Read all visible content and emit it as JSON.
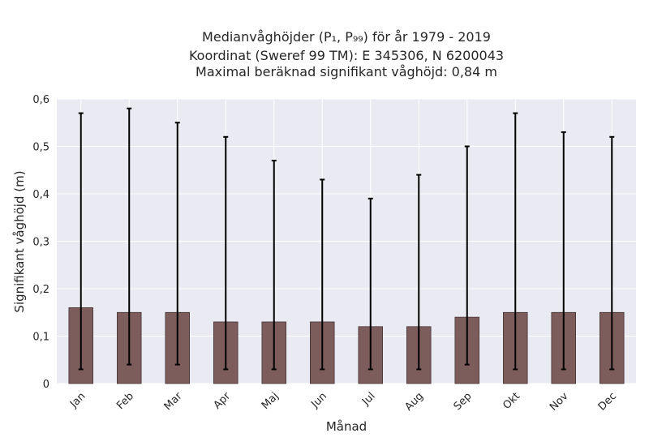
{
  "chart_data": {
    "type": "bar",
    "title": [
      "Medianvåghöjder (P₁, P₉₉) för år 1979 - 2019",
      "Koordinat (Sweref 99 TM): E 345306, N 6200043",
      "Maximal beräknad signifikant våghöjd: 0,84 m"
    ],
    "xlabel": "Månad",
    "ylabel": "Signifikant våghöjd (m)",
    "categories": [
      "Jan",
      "Feb",
      "Mar",
      "Apr",
      "Maj",
      "Jun",
      "Jul",
      "Aug",
      "Sep",
      "Okt",
      "Nov",
      "Dec"
    ],
    "values": [
      0.16,
      0.15,
      0.15,
      0.13,
      0.13,
      0.13,
      0.12,
      0.12,
      0.14,
      0.15,
      0.15,
      0.15
    ],
    "p1": [
      0.03,
      0.04,
      0.04,
      0.03,
      0.03,
      0.03,
      0.03,
      0.03,
      0.04,
      0.03,
      0.03,
      0.03
    ],
    "p99": [
      0.57,
      0.58,
      0.55,
      0.52,
      0.47,
      0.43,
      0.39,
      0.44,
      0.5,
      0.57,
      0.53,
      0.52
    ],
    "ylim": [
      0,
      0.6
    ],
    "yticks": [
      0,
      0.1,
      0.2,
      0.3,
      0.4,
      0.5,
      0.6
    ],
    "ytick_labels": [
      "0",
      "0,1",
      "0,2",
      "0,3",
      "0,4",
      "0,5",
      "0,6"
    ],
    "grid": true,
    "colors": {
      "bar": "#7d5c5c",
      "bar_edge": "#3a2a2a",
      "errorbar": "#000000",
      "plot_bg": "#eaeaf2",
      "grid": "#ffffff"
    }
  }
}
